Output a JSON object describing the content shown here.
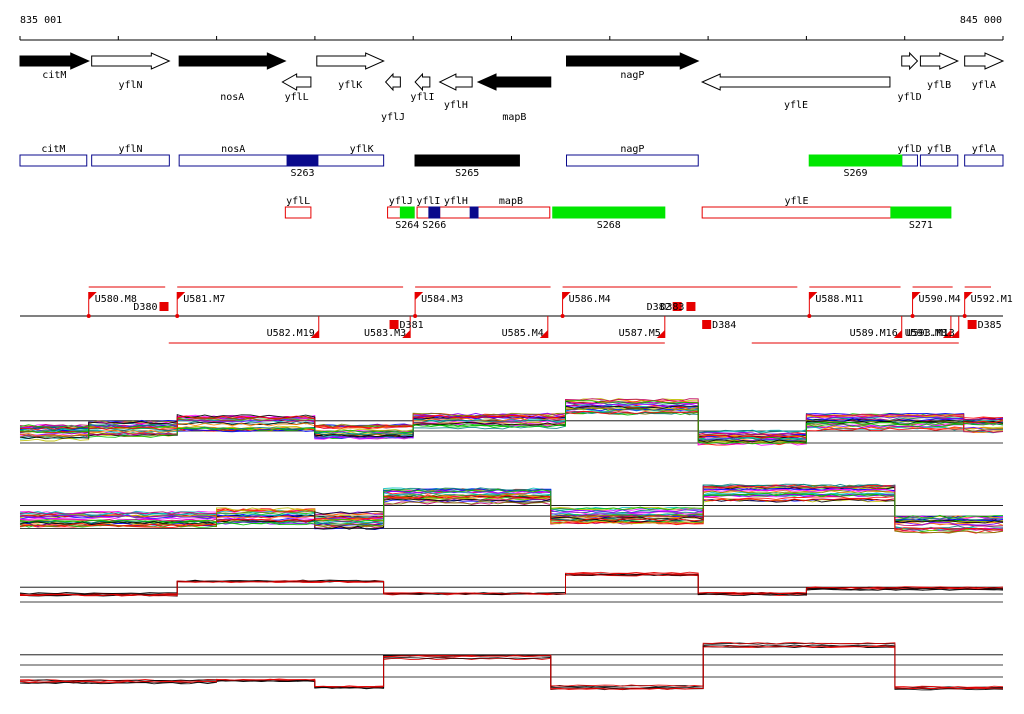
{
  "ruler": {
    "start_label": "835 001",
    "end_label": "845 000",
    "start": 835001,
    "end": 845000
  },
  "genes": [
    {
      "name": "citM",
      "start": 835001,
      "end": 835700,
      "strand": "+",
      "filled": true,
      "label_row": "high"
    },
    {
      "name": "yflN",
      "start": 835730,
      "end": 836520,
      "strand": "+",
      "filled": false,
      "label_row": "mid"
    },
    {
      "name": "nosA",
      "start": 836620,
      "end": 837700,
      "strand": "+",
      "filled": true,
      "label_row": "low"
    },
    {
      "name": "yflL",
      "start": 837670,
      "end": 837960,
      "strand": "-",
      "filled": false,
      "label_row": "low"
    },
    {
      "name": "yflK",
      "start": 838020,
      "end": 838700,
      "strand": "+",
      "filled": false,
      "label_row": "mid"
    },
    {
      "name": "yflJ",
      "start": 838720,
      "end": 838870,
      "strand": "-",
      "filled": false,
      "label_row": "lower"
    },
    {
      "name": "yflI",
      "start": 839020,
      "end": 839170,
      "strand": "-",
      "filled": false,
      "label_row": "low"
    },
    {
      "name": "yflH",
      "start": 839270,
      "end": 839600,
      "strand": "-",
      "filled": false,
      "label_row": "lowish"
    },
    {
      "name": "mapB",
      "start": 839660,
      "end": 840400,
      "strand": "-",
      "filled": true,
      "label_row": "lower"
    },
    {
      "name": "nagP",
      "start": 840560,
      "end": 841900,
      "strand": "+",
      "filled": true,
      "label_row": "high"
    },
    {
      "name": "yflE",
      "start": 841940,
      "end": 843850,
      "strand": "-",
      "filled": false,
      "label_row": "mid2"
    },
    {
      "name": "yflD",
      "start": 843970,
      "end": 844130,
      "strand": "+",
      "filled": false,
      "label_row": "low"
    },
    {
      "name": "yflB",
      "start": 844160,
      "end": 844540,
      "strand": "+",
      "filled": false,
      "label_row": "mid"
    },
    {
      "name": "yflA",
      "start": 844610,
      "end": 845000,
      "strand": "+",
      "filled": false,
      "label_row": "mid"
    }
  ],
  "segments": {
    "plus_row": [
      {
        "label": "citM",
        "start": 835001,
        "end": 835680,
        "fill": ""
      },
      {
        "label": "yflN",
        "start": 835730,
        "end": 836520,
        "fill": ""
      },
      {
        "label": "nosA",
        "start": 836620,
        "end": 837720,
        "fill": ""
      },
      {
        "label": "yflK",
        "start": 837720,
        "end": 838700,
        "fill": "",
        "name_anchor": "end"
      },
      {
        "label": "",
        "start": 837720,
        "end": 838030,
        "fill": "#0a0a8c",
        "feature": "S263"
      },
      {
        "label": "",
        "start": 839020,
        "end": 840080,
        "fill": "#000000",
        "feature": "S265"
      },
      {
        "label": "nagP",
        "start": 840560,
        "end": 841900,
        "fill": ""
      },
      {
        "label": "",
        "start": 843030,
        "end": 843970,
        "fill": "#00e600",
        "feature": "S269"
      },
      {
        "label": "yflD",
        "start": 843970,
        "end": 844130,
        "fill": ""
      },
      {
        "label": "yflB",
        "start": 844160,
        "end": 844540,
        "fill": ""
      },
      {
        "label": "yflA",
        "start": 844610,
        "end": 845000,
        "fill": ""
      }
    ],
    "minus_row": [
      {
        "label": "yflL",
        "start": 837700,
        "end": 837960,
        "fill": ""
      },
      {
        "label": "yflJ",
        "start": 838740,
        "end": 839010,
        "fill": ""
      },
      {
        "label": "yflI",
        "start": 839040,
        "end": 839270,
        "fill": ""
      },
      {
        "label": "yflH",
        "start": 839270,
        "end": 839600,
        "fill": ""
      },
      {
        "label": "mapB",
        "start": 839600,
        "end": 840390,
        "fill": ""
      },
      {
        "label": "yflE",
        "start": 841940,
        "end": 843860,
        "fill": ""
      }
    ],
    "features": [
      {
        "name": "S263",
        "start": 837720,
        "end": 838030,
        "color": "#0a0a8c",
        "row": "plus"
      },
      {
        "name": "S265",
        "start": 839020,
        "end": 840080,
        "color": "#000000",
        "row": "plus"
      },
      {
        "name": "S269",
        "start": 843030,
        "end": 843970,
        "color": "#00e600",
        "row": "plus"
      },
      {
        "name": "S264",
        "start": 838870,
        "end": 839010,
        "color": "#00e600",
        "row": "minus"
      },
      {
        "name": "S266",
        "start": 839160,
        "end": 839270,
        "color": "#0a0a8c",
        "row": "minus"
      },
      {
        "name": "",
        "start": 839580,
        "end": 839660,
        "color": "#0a0a8c",
        "row": "minus"
      },
      {
        "name": "S268",
        "start": 840420,
        "end": 841560,
        "color": "#00e600",
        "row": "minus"
      },
      {
        "name": "S271",
        "start": 843860,
        "end": 844470,
        "color": "#00e600",
        "row": "minus"
      }
    ]
  },
  "transcripts": {
    "up": [
      {
        "label": "U580.M8",
        "pos": 835700
      },
      {
        "label": "U581.M7",
        "pos": 836600
      },
      {
        "label": "U584.M3",
        "pos": 839020
      },
      {
        "label": "U586.M4",
        "pos": 840520
      },
      {
        "label": "U588.M11",
        "pos": 843030
      },
      {
        "label": "U590.M4",
        "pos": 844080
      },
      {
        "label": "U592.M1",
        "pos": 844610
      }
    ],
    "down": [
      {
        "label": "U582.M19",
        "pos": 838040
      },
      {
        "label": "U583.M3",
        "pos": 838970
      },
      {
        "label": "U585.M4",
        "pos": 840370
      },
      {
        "label": "U587.M5",
        "pos": 841560
      },
      {
        "label": "U589.M16",
        "pos": 843970
      },
      {
        "label": "U591.M8",
        "pos": 844470
      },
      {
        "label": "U593.M13",
        "pos": 844550
      }
    ],
    "down_boxes_up": [
      {
        "label": "D380",
        "pos": 836420
      },
      {
        "label": "D382",
        "pos": 841640
      },
      {
        "label": "D383",
        "pos": 841780
      }
    ],
    "down_boxes_low": [
      {
        "label": "D381",
        "pos": 838760
      },
      {
        "label": "D384",
        "pos": 841940
      },
      {
        "label": "D385",
        "pos": 844640
      }
    ]
  },
  "tracks": [
    {
      "name": "plus-strand-tiling",
      "segments": [
        {
          "x0": 835001,
          "x1": 835700,
          "lvl": 0.58
        },
        {
          "x0": 835700,
          "x1": 836600,
          "lvl": 0.52
        },
        {
          "x0": 836600,
          "x1": 838000,
          "lvl": 0.42
        },
        {
          "x0": 838000,
          "x1": 839000,
          "lvl": 0.55
        },
        {
          "x0": 839000,
          "x1": 840550,
          "lvl": 0.37
        },
        {
          "x0": 840550,
          "x1": 841900,
          "lvl": 0.15
        },
        {
          "x0": 841900,
          "x1": 843000,
          "lvl": 0.65
        },
        {
          "x0": 843000,
          "x1": 844600,
          "lvl": 0.4
        },
        {
          "x0": 844600,
          "x1": 845000,
          "lvl": 0.45
        }
      ]
    },
    {
      "name": "minus-strand-tiling",
      "segments": [
        {
          "x0": 835001,
          "x1": 837000,
          "lvl": 0.62
        },
        {
          "x0": 837000,
          "x1": 838000,
          "lvl": 0.55
        },
        {
          "x0": 838000,
          "x1": 838700,
          "lvl": 0.62
        },
        {
          "x0": 838700,
          "x1": 840400,
          "lvl": 0.22
        },
        {
          "x0": 840400,
          "x1": 841950,
          "lvl": 0.55
        },
        {
          "x0": 841950,
          "x1": 843900,
          "lvl": 0.18
        },
        {
          "x0": 843900,
          "x1": 845000,
          "lvl": 0.68
        }
      ]
    },
    {
      "name": "plus-strand-summary",
      "segments": [
        {
          "x0": 835001,
          "x1": 836600,
          "lvl": 0.55
        },
        {
          "x0": 836600,
          "x1": 838700,
          "lvl": 0.22
        },
        {
          "x0": 838700,
          "x1": 840550,
          "lvl": 0.55
        },
        {
          "x0": 840550,
          "x1": 841900,
          "lvl": 0.05
        },
        {
          "x0": 841900,
          "x1": 843000,
          "lvl": 0.55
        },
        {
          "x0": 843000,
          "x1": 845000,
          "lvl": 0.42
        }
      ]
    },
    {
      "name": "minus-strand-summary",
      "segments": [
        {
          "x0": 835001,
          "x1": 837000,
          "lvl": 0.82
        },
        {
          "x0": 837000,
          "x1": 838000,
          "lvl": 0.78
        },
        {
          "x0": 838000,
          "x1": 838700,
          "lvl": 0.92
        },
        {
          "x0": 838700,
          "x1": 840400,
          "lvl": 0.42
        },
        {
          "x0": 840400,
          "x1": 841950,
          "lvl": 0.92
        },
        {
          "x0": 841950,
          "x1": 843900,
          "lvl": 0.22
        },
        {
          "x0": 843900,
          "x1": 845000,
          "lvl": 0.95
        }
      ]
    }
  ],
  "colors": {
    "forward": "#0a0a8c",
    "reverse": "#e60000",
    "tiling_palette": [
      "#ff0000",
      "#00c000",
      "#0000ff",
      "#ff00ff",
      "#00c0c0",
      "#c0c000",
      "#ff8000",
      "#8000ff",
      "#008080",
      "#c00060",
      "#808000",
      "#000000"
    ]
  }
}
